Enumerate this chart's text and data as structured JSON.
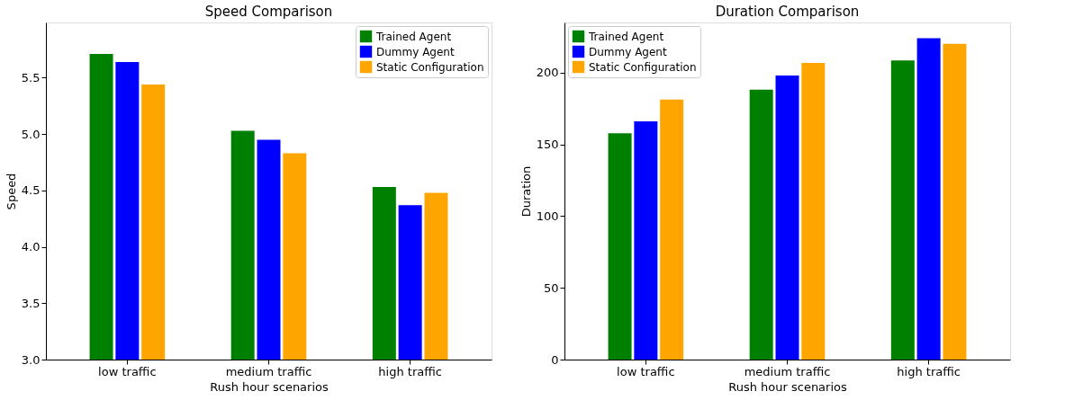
{
  "chart_data": [
    {
      "type": "bar",
      "title": "Speed Comparison",
      "xlabel": "Rush hour scenarios",
      "ylabel": "Speed",
      "categories": [
        "low traffic",
        "medium traffic",
        "high traffic"
      ],
      "series": [
        {
          "name": "Trained Agent",
          "color": "#008000",
          "values": [
            5.71,
            5.03,
            4.53
          ]
        },
        {
          "name": "Dummy Agent",
          "color": "#0000ff",
          "values": [
            5.64,
            4.95,
            4.37
          ]
        },
        {
          "name": "Static Configuration",
          "color": "#ffa500",
          "values": [
            5.44,
            4.83,
            4.48
          ]
        }
      ],
      "ylim": [
        3.0,
        5.99
      ],
      "yticks": [
        {
          "value": 3.0,
          "label": "3.0"
        },
        {
          "value": 3.5,
          "label": "3.5"
        },
        {
          "value": 4.0,
          "label": "4.0"
        },
        {
          "value": 4.5,
          "label": "4.5"
        },
        {
          "value": 5.0,
          "label": "5.0"
        },
        {
          "value": 5.5,
          "label": "5.5"
        }
      ],
      "grid": false,
      "legend": "top right"
    },
    {
      "type": "bar",
      "title": "Duration Comparison",
      "xlabel": "Rush hour scenarios",
      "ylabel": "Duration",
      "categories": [
        "low traffic",
        "medium traffic",
        "high traffic"
      ],
      "series": [
        {
          "name": "Trained Agent",
          "color": "#008000",
          "values": [
            157.7,
            188.2,
            208.6
          ]
        },
        {
          "name": "Dummy Agent",
          "color": "#0000ff",
          "values": [
            166.1,
            198.0,
            224.0
          ]
        },
        {
          "name": "Static Configuration",
          "color": "#ffa500",
          "values": [
            181.2,
            206.8,
            220.1
          ]
        }
      ],
      "ylim": [
        0,
        235
      ],
      "yticks": [
        0,
        50,
        100,
        150,
        200
      ],
      "grid": false,
      "legend": "top left"
    }
  ]
}
